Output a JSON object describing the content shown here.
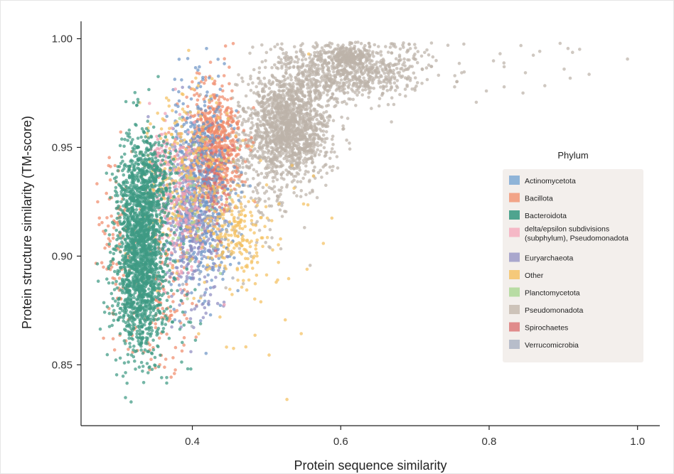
{
  "chart_data": {
    "type": "scatter",
    "title": "",
    "xlabel": "Protein sequence similarity",
    "ylabel": "Protein structure similarity (TM-score)",
    "xlim": [
      0.25,
      1.03
    ],
    "ylim": [
      0.822,
      1.008
    ],
    "x_ticks": [
      0.4,
      0.6,
      0.8,
      1.0
    ],
    "x_tick_labels": [
      "0.4",
      "0.6",
      "0.8",
      "1.0"
    ],
    "y_ticks": [
      0.85,
      0.9,
      0.95,
      1.0
    ],
    "y_tick_labels": [
      "0.85",
      "0.90",
      "0.95",
      "1.00"
    ],
    "grid": false,
    "legend": {
      "title": "Phylum",
      "placement": "right",
      "entries": [
        {
          "label": "Actinomycetota",
          "color": "#8fb4d8"
        },
        {
          "label": "Bacillota",
          "color": "#f2a488"
        },
        {
          "label": "Bacteroidota",
          "color": "#4fa48f"
        },
        {
          "label": [
            "delta/epsilon subdivisions",
            "(subphylum), Pseudomonadota"
          ],
          "color": "#f5b8c6"
        },
        {
          "label": "Euryarchaeota",
          "color": "#a9a7cd"
        },
        {
          "label": "Other",
          "color": "#f5c97a"
        },
        {
          "label": "Planctomycetota",
          "color": "#b8dca4"
        },
        {
          "label": "Pseudomonadota",
          "color": "#cdc3b9"
        },
        {
          "label": "Spirochaetes",
          "color": "#e08b8b"
        },
        {
          "label": "Verrucomicrobia",
          "color": "#b7bdca"
        }
      ]
    },
    "series": [
      {
        "name": "Pseudomonadota",
        "color": "#bdb3a9",
        "clusters": [
          {
            "cx": 0.53,
            "cy": 0.96,
            "sx": 0.028,
            "sy": 0.012,
            "n": 1500
          },
          {
            "cx": 0.59,
            "cy": 0.985,
            "sx": 0.04,
            "sy": 0.007,
            "n": 600
          },
          {
            "cx": 0.61,
            "cy": 0.992,
            "sx": 0.012,
            "sy": 0.002,
            "n": 160
          },
          {
            "cx": 0.66,
            "cy": 0.985,
            "sx": 0.035,
            "sy": 0.006,
            "n": 220
          },
          {
            "cx": 0.82,
            "cy": 0.99,
            "sx": 0.09,
            "sy": 0.008,
            "n": 32
          },
          {
            "cx": 0.48,
            "cy": 0.935,
            "sx": 0.04,
            "sy": 0.015,
            "n": 220
          }
        ]
      },
      {
        "name": "Bacillota",
        "color": "#f08c6c",
        "clusters": [
          {
            "cx": 0.43,
            "cy": 0.95,
            "sx": 0.018,
            "sy": 0.014,
            "n": 650
          },
          {
            "cx": 0.3,
            "cy": 0.905,
            "sx": 0.015,
            "sy": 0.02,
            "n": 110
          },
          {
            "cx": 0.36,
            "cy": 0.885,
            "sx": 0.02,
            "sy": 0.02,
            "n": 120
          }
        ]
      },
      {
        "name": "Actinomycetota",
        "color": "#6f96c6",
        "clusters": [
          {
            "cx": 0.41,
            "cy": 0.93,
            "sx": 0.022,
            "sy": 0.022,
            "n": 700
          }
        ]
      },
      {
        "name": "Euryarchaeota",
        "color": "#8f8cc0",
        "clusters": [
          {
            "cx": 0.4,
            "cy": 0.915,
            "sx": 0.02,
            "sy": 0.02,
            "n": 300
          }
        ]
      },
      {
        "name": "delta/epsilon subdivisions (subphylum), Pseudomonadota",
        "color": "#f0a0b4",
        "clusters": [
          {
            "cx": 0.38,
            "cy": 0.925,
            "sx": 0.02,
            "sy": 0.018,
            "n": 260
          },
          {
            "cx": 0.355,
            "cy": 0.948,
            "sx": 0.006,
            "sy": 0.005,
            "n": 40
          }
        ]
      },
      {
        "name": "Other",
        "color": "#f4c061",
        "clusters": [
          {
            "cx": 0.39,
            "cy": 0.935,
            "sx": 0.03,
            "sy": 0.02,
            "n": 260
          },
          {
            "cx": 0.46,
            "cy": 0.912,
            "sx": 0.02,
            "sy": 0.01,
            "n": 160
          },
          {
            "cx": 0.48,
            "cy": 0.9,
            "sx": 0.06,
            "sy": 0.03,
            "n": 60
          }
        ]
      },
      {
        "name": "Spirochaetes",
        "color": "#d86b6b",
        "clusters": [
          {
            "cx": 0.43,
            "cy": 0.935,
            "sx": 0.01,
            "sy": 0.015,
            "n": 60
          }
        ]
      },
      {
        "name": "Planctomycetota",
        "color": "#a7d491",
        "clusters": [
          {
            "cx": 0.4,
            "cy": 0.925,
            "sx": 0.025,
            "sy": 0.02,
            "n": 40
          }
        ]
      },
      {
        "name": "Verrucomicrobia",
        "color": "#a3aabb",
        "clusters": [
          {
            "cx": 0.42,
            "cy": 0.92,
            "sx": 0.025,
            "sy": 0.02,
            "n": 40
          }
        ]
      },
      {
        "name": "Bacteroidota",
        "color": "#3f9a84",
        "clusters": [
          {
            "cx": 0.33,
            "cy": 0.905,
            "sx": 0.016,
            "sy": 0.022,
            "n": 1800
          },
          {
            "cx": 0.33,
            "cy": 0.875,
            "sx": 0.03,
            "sy": 0.015,
            "n": 160
          },
          {
            "cx": 0.345,
            "cy": 0.935,
            "sx": 0.02,
            "sy": 0.01,
            "n": 200
          }
        ]
      }
    ]
  }
}
